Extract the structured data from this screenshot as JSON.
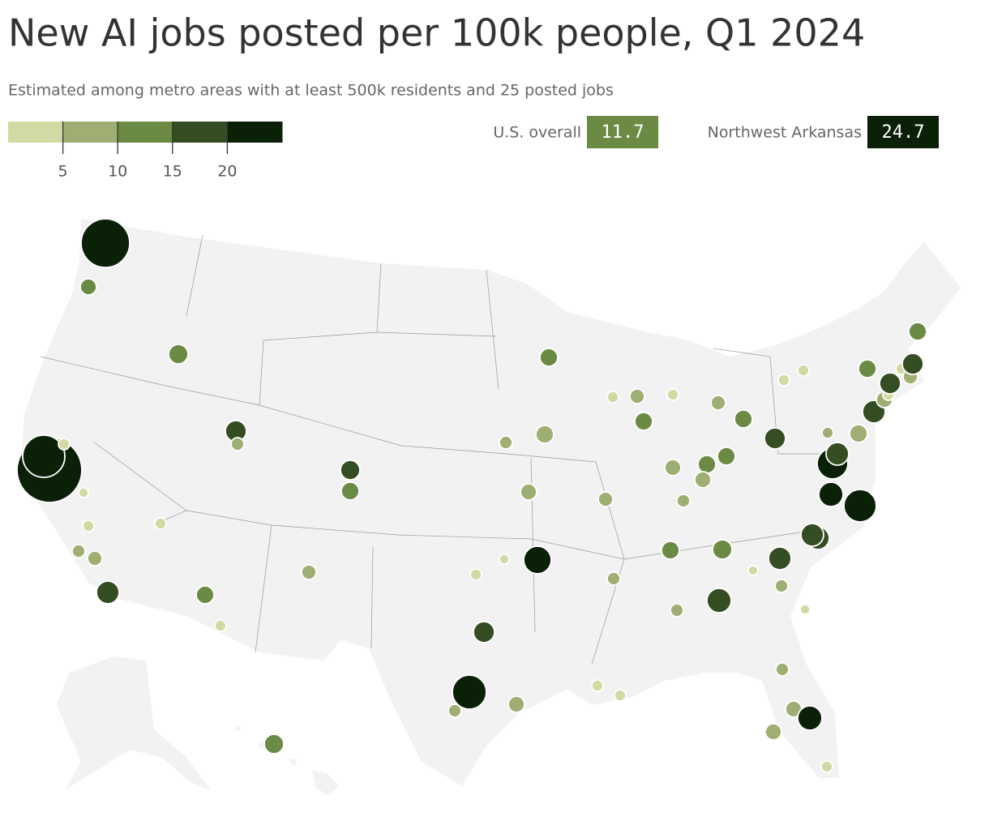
{
  "chart_data": {
    "type": "bubble-map",
    "title": "New AI jobs posted per 100k people, Q1 2024",
    "subtitle": "Estimated among metro areas with at least 500k residents and 25 posted jobs",
    "clim": [
      0,
      25
    ],
    "legend_ticks": [
      5,
      10,
      15,
      20
    ],
    "bin_colors": [
      "#d2d9a3",
      "#9fae72",
      "#6b8a43",
      "#344d22",
      "#0a2108"
    ],
    "callouts": [
      {
        "label": "U.S. overall",
        "value": 11.7
      },
      {
        "label": "Northwest Arkansas",
        "value": 24.7
      }
    ],
    "values": [
      23,
      13,
      13,
      24,
      23,
      3,
      3,
      3,
      8,
      8,
      18,
      3,
      18,
      8,
      18,
      13,
      8,
      13,
      3,
      13,
      18,
      23,
      8,
      8,
      3,
      3,
      24.7,
      8,
      8,
      8,
      13,
      3,
      8,
      13,
      3,
      8,
      13,
      8,
      13,
      8,
      13,
      8,
      8,
      13,
      13,
      8,
      8,
      18,
      3,
      18,
      8,
      3,
      18,
      18,
      8,
      3,
      3,
      8,
      23,
      8,
      3,
      23,
      23,
      23,
      18,
      18,
      8,
      8,
      18,
      8,
      3,
      18,
      13,
      3,
      8,
      18,
      13,
      3,
      3
    ]
  }
}
